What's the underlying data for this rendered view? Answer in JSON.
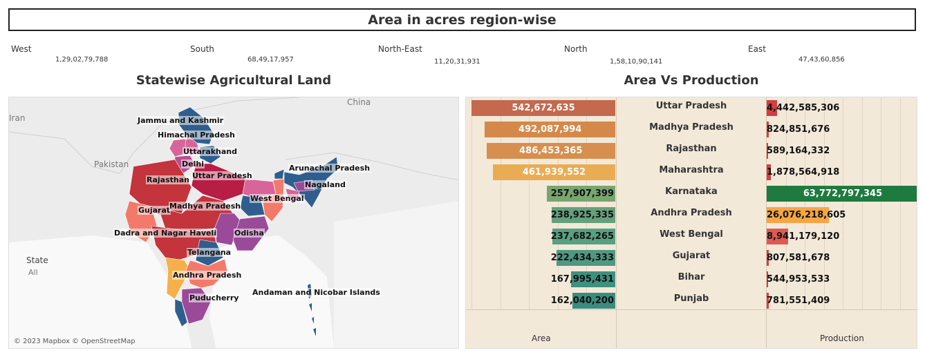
{
  "header": {
    "title": "Area in acres region-wise"
  },
  "regions": [
    {
      "name": "West",
      "value": "1,29,02,79,788"
    },
    {
      "name": "South",
      "value": "68,49,17,957"
    },
    {
      "name": "North-East",
      "value": "11,20,31,931"
    },
    {
      "name": "North",
      "value": "1,58,10,90,141"
    },
    {
      "name": "East",
      "value": "47,43,60,856"
    }
  ],
  "map": {
    "title": "Statewise Agricultural Land",
    "attribution": "© 2023 Mapbox © OpenStreetMap",
    "legend": {
      "field": "State",
      "value": "All"
    },
    "geo_labels": [
      "Iran",
      "Pakistan",
      "China"
    ],
    "state_labels": [
      "Jammu and Kashmir",
      "Himachal Pradesh",
      "Uttarakhand",
      "Delhi",
      "Arunachal Pradesh",
      "Rajasthan",
      "Uttar Pradesh",
      "Nagaland",
      "West Bengal",
      "Gujarat",
      "Madhya Pradesh",
      "Dadra and Nagar Haveli",
      "Odisha",
      "Telangana",
      "Andhra Pradesh",
      "Puducherry",
      "Andaman and Nicobar Islands"
    ]
  },
  "chart_data": {
    "type": "bar",
    "title": "Area Vs Production",
    "categories": [
      "Uttar Pradesh",
      "Madhya Pradesh",
      "Rajasthan",
      "Maharashtra",
      "Karnataka",
      "Andhra Pradesh",
      "West Bengal",
      "Gujarat",
      "Bihar",
      "Punjab"
    ],
    "series": [
      {
        "name": "Area",
        "values": [
          542672635,
          492087994,
          486453365,
          461939552,
          257907399,
          238925335,
          237682265,
          222434333,
          167995431,
          162040200
        ],
        "labels": [
          "542,672,635",
          "492,087,994",
          "486,453,365",
          "461,939,552",
          "257,907,399",
          "238,925,335",
          "237,682,265",
          "222,434,333",
          "167,995,431",
          "162,040,200"
        ],
        "colors": [
          "#c4694e",
          "#d4894a",
          "#d68f4e",
          "#eaac53",
          "#79a56f",
          "#65a07c",
          "#58a080",
          "#509883",
          "#3f9080",
          "#3a8c7d"
        ]
      },
      {
        "name": "Production",
        "values": [
          4442585306,
          824851676,
          589164332,
          1878564918,
          63772797345,
          26076218605,
          8941179120,
          807581678,
          544953533,
          781551409
        ],
        "labels": [
          "4,442,585,306",
          "824,851,676",
          "589,164,332",
          "1,878,564,918",
          "63,772,797,345",
          "26,076,218,605",
          "8,941,179,120",
          "807,581,678",
          "544,953,533",
          "781,551,409"
        ],
        "colors": [
          "#d33f3f",
          "#d33f3f",
          "#d33f3f",
          "#d33f3f",
          "#1e7a3f",
          "#f4a644",
          "#e05a52",
          "#d33f3f",
          "#d33f3f",
          "#d33f3f"
        ]
      }
    ],
    "axis_labels": {
      "area": "Area",
      "production": "Production"
    }
  }
}
